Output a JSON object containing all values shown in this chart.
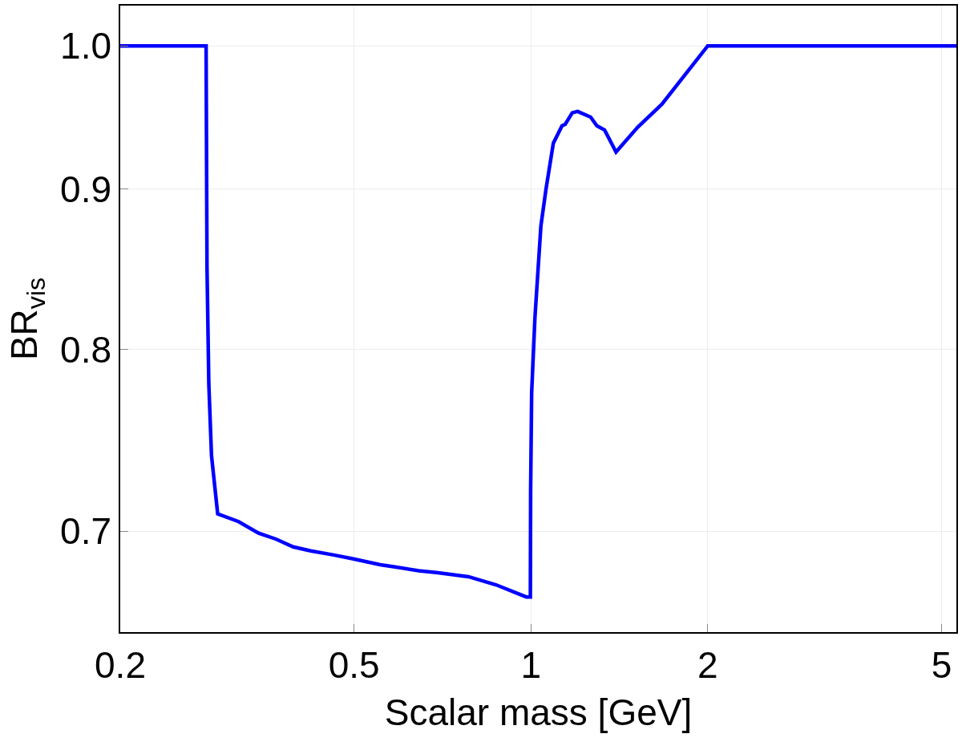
{
  "chart_data": {
    "type": "line",
    "xlabel": "Scalar mass [GeV]",
    "ylabel": "BR$_{vis}$",
    "log": "xy",
    "grid": true,
    "marker": "none",
    "line_style": "solid",
    "xlim": [
      0.2,
      5.3
    ],
    "xticks": [
      0.2,
      0.5,
      1,
      2,
      5
    ],
    "ylim": [
      0.65,
      1.03
    ],
    "yticks": [
      0.7,
      0.8,
      0.9,
      {
        "value": 1,
        "label": "1.0"
      }
    ],
    "x": [
      0.2,
      0.28,
      0.281,
      0.283,
      0.286,
      0.293,
      0.318,
      0.344,
      0.368,
      0.394,
      0.422,
      0.46,
      0.497,
      0.554,
      0.584,
      0.644,
      0.695,
      0.783,
      0.872,
      0.982,
      0.998,
      0.999,
      1.003,
      1.016,
      1.04,
      1.061,
      1.092,
      1.13,
      1.144,
      1.176,
      1.201,
      1.264,
      1.295,
      1.335,
      1.396,
      1.52,
      1.671,
      2.0,
      5.3
    ],
    "series": [
      {
        "color": "#0000ff",
        "values": [
          1.0,
          1.0,
          0.85,
          0.78,
          0.74,
          0.709,
          0.705,
          0.699,
          0.696,
          0.692,
          0.69,
          0.688,
          0.686,
          0.683,
          0.682,
          0.68,
          0.679,
          0.677,
          0.673,
          0.667,
          0.667,
          0.721,
          0.775,
          0.819,
          0.876,
          0.9,
          0.931,
          0.943,
          0.944,
          0.952,
          0.953,
          0.949,
          0.943,
          0.94,
          0.925,
          0.942,
          0.958,
          1.0,
          1.0
        ]
      }
    ]
  }
}
